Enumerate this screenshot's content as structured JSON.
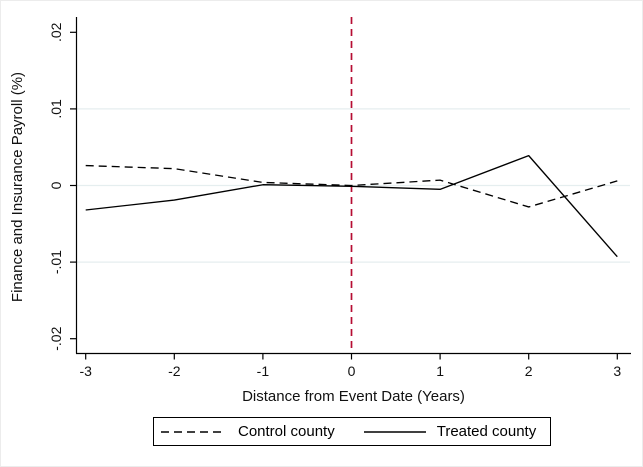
{
  "figure": {
    "background": "#ffffff"
  },
  "chart_data": {
    "type": "line",
    "title": "",
    "xlabel": "Distance from Event Date (Years)",
    "ylabel": "Finance and Insurance Payroll (%)",
    "x": [
      -3,
      -2,
      -1,
      0,
      1,
      2,
      3
    ],
    "series": [
      {
        "name": "Control county",
        "style": "dashed",
        "color": "#000000",
        "values": [
          0.0026,
          0.0022,
          0.0004,
          0.0,
          0.0007,
          -0.0028,
          0.0006
        ]
      },
      {
        "name": "Treated county",
        "style": "solid",
        "color": "#000000",
        "values": [
          -0.0032,
          -0.0019,
          0.0001,
          -0.0001,
          -0.0005,
          0.0039,
          -0.0093
        ]
      }
    ],
    "xlim": [
      -3.15,
      3.15
    ],
    "ylim": [
      -0.022,
      0.022
    ],
    "x_ticks": [
      {
        "value": -3,
        "label": "-3"
      },
      {
        "value": -2,
        "label": "-2"
      },
      {
        "value": -1,
        "label": "-1"
      },
      {
        "value": 0,
        "label": "0"
      },
      {
        "value": 1,
        "label": "1"
      },
      {
        "value": 2,
        "label": "2"
      },
      {
        "value": 3,
        "label": "3"
      }
    ],
    "y_ticks": [
      {
        "value": 0.02,
        "label": ".02"
      },
      {
        "value": 0.01,
        "label": ".01"
      },
      {
        "value": 0,
        "label": "0"
      },
      {
        "value": -0.01,
        "label": "-.01"
      },
      {
        "value": -0.02,
        "label": "-.02"
      }
    ],
    "grid_y": [
      0.01,
      0,
      -0.01
    ],
    "grid_color": "#e5eeef",
    "axis_color": "#000000",
    "event_line": {
      "x": 0,
      "color": "#b60d33",
      "style": "dashed"
    },
    "legend": {
      "position": "bottom",
      "border": true
    }
  }
}
